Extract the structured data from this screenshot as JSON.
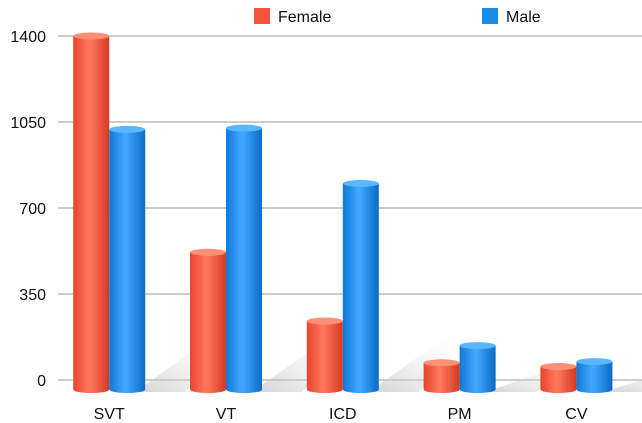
{
  "chart_data": {
    "type": "bar",
    "categories": [
      "SVT",
      "VT",
      "ICD",
      "PM",
      "CV"
    ],
    "series": [
      {
        "name": "Female",
        "values": [
          1400,
          520,
          240,
          70,
          55
        ],
        "color": "#f2553a"
      },
      {
        "name": "Male",
        "values": [
          1020,
          1025,
          800,
          140,
          75
        ],
        "color": "#1a8be6"
      }
    ],
    "ylim": [
      0,
      1400
    ],
    "yticks": [
      0,
      350,
      700,
      1050,
      1400
    ],
    "grid": true,
    "legend_position": "top"
  }
}
